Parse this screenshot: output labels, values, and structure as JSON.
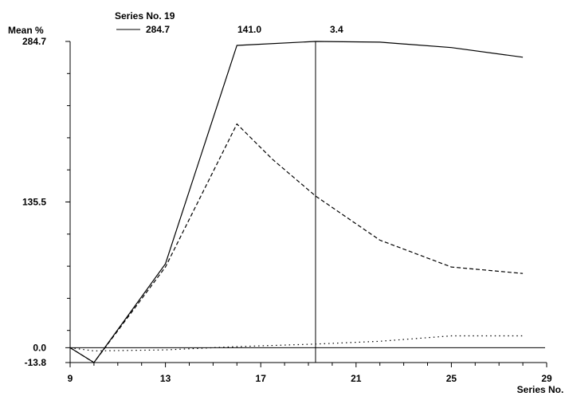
{
  "chart_data": {
    "type": "line",
    "ylabel": "Mean %",
    "xlabel": "Series No.",
    "ylim": [
      -13.8,
      284.7
    ],
    "xlim": [
      9,
      29
    ],
    "y_tick_labels": [
      "284.7",
      "135.5",
      "0.0",
      "-13.8"
    ],
    "y_tick_values": [
      284.7,
      135.5,
      0.0,
      -13.8
    ],
    "x_tick_labels": [
      "9",
      "13",
      "17",
      "21",
      "25",
      "29"
    ],
    "x_tick_values": [
      9,
      13,
      17,
      21,
      25,
      29
    ],
    "cursor": {
      "label": "Series No. 19",
      "x": 19.3,
      "readouts": [
        "284.7",
        "141.0",
        "3.4"
      ]
    },
    "grid": false,
    "series": [
      {
        "style": "solid",
        "x": [
          9,
          10,
          13,
          16,
          19.3,
          22,
          25,
          28
        ],
        "y": [
          0,
          -13.8,
          78,
          281,
          284.7,
          284,
          279,
          270
        ]
      },
      {
        "style": "dashed",
        "x": [
          9,
          10,
          13,
          16,
          17.5,
          19.3,
          22,
          25,
          28
        ],
        "y": [
          0,
          -13.8,
          75,
          208,
          175,
          141,
          100,
          75,
          69
        ]
      },
      {
        "style": "dotted",
        "x": [
          9,
          10,
          13,
          16,
          19.3,
          22,
          25,
          28
        ],
        "y": [
          0,
          -3,
          -2,
          1,
          3.4,
          6,
          11,
          11
        ]
      }
    ]
  }
}
